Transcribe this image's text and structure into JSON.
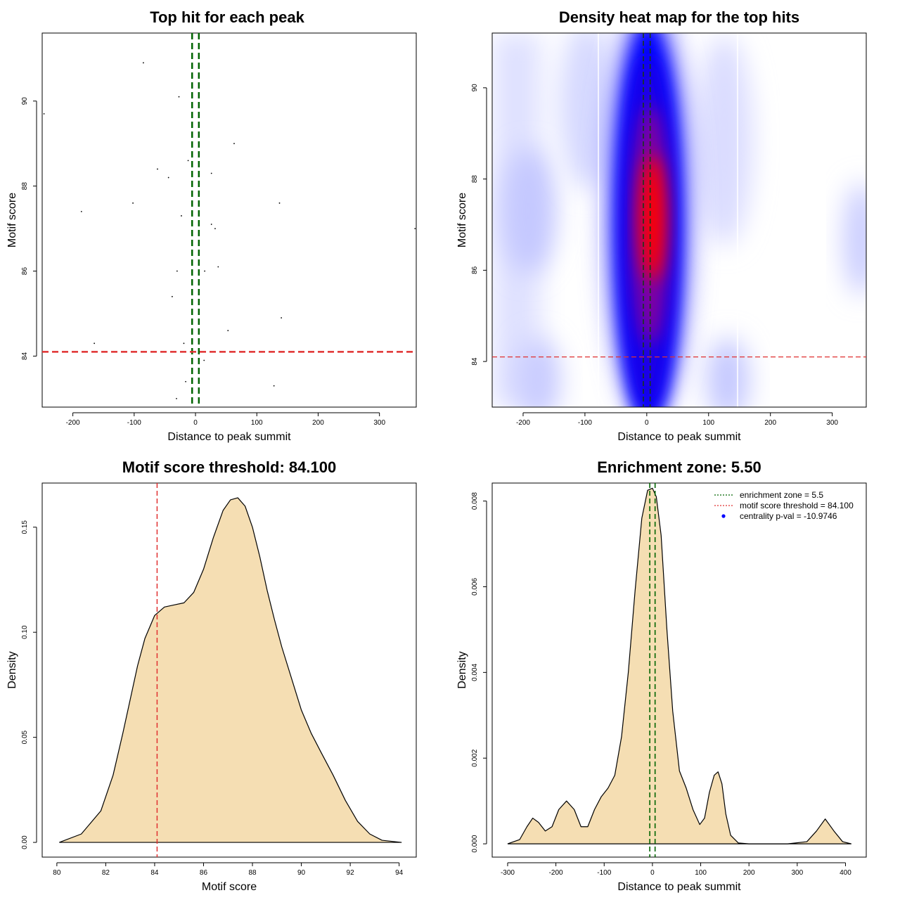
{
  "chart_data": [
    {
      "id": "scatter",
      "type": "scatter",
      "title": "Top hit for each peak",
      "xlabel": "Distance to peak summit",
      "ylabel": "Motif score",
      "xlim": [
        -250,
        360
      ],
      "ylim": [
        82.8,
        91.6
      ],
      "xticks": [
        -200,
        -100,
        0,
        100,
        200,
        300
      ],
      "yticks": [
        84,
        86,
        88,
        90
      ],
      "vlines": [
        -5.5,
        5.5
      ],
      "hline": 84.1,
      "points": [
        {
          "x": -247,
          "y": 89.7
        },
        {
          "x": -85,
          "y": 90.9
        },
        {
          "x": -27,
          "y": 90.1
        },
        {
          "x": 63,
          "y": 89.0
        },
        {
          "x": -62,
          "y": 88.4
        },
        {
          "x": -44,
          "y": 88.2
        },
        {
          "x": -12,
          "y": 88.6
        },
        {
          "x": 26,
          "y": 88.3
        },
        {
          "x": -102,
          "y": 87.6
        },
        {
          "x": 137,
          "y": 87.6
        },
        {
          "x": -186,
          "y": 87.4
        },
        {
          "x": -23,
          "y": 87.3
        },
        {
          "x": 26,
          "y": 87.1
        },
        {
          "x": 32,
          "y": 87.0
        },
        {
          "x": 358,
          "y": 87.0
        },
        {
          "x": 37,
          "y": 86.1
        },
        {
          "x": -30,
          "y": 86.0
        },
        {
          "x": 15,
          "y": 86.0
        },
        {
          "x": -38,
          "y": 85.4
        },
        {
          "x": 140,
          "y": 84.9
        },
        {
          "x": 53,
          "y": 84.6
        },
        {
          "x": -165,
          "y": 84.3
        },
        {
          "x": -19,
          "y": 84.3
        },
        {
          "x": 14,
          "y": 83.9
        },
        {
          "x": -16,
          "y": 83.4
        },
        {
          "x": 128,
          "y": 83.3
        },
        {
          "x": -31,
          "y": 83.0
        }
      ]
    },
    {
      "id": "heatmap",
      "type": "heatmap",
      "title": "Density heat map for the top hits",
      "xlabel": "Distance to peak summit",
      "ylabel": "Motif score",
      "xlim": [
        -250,
        355
      ],
      "ylim": [
        83,
        91.2
      ],
      "xticks": [
        -200,
        -100,
        0,
        100,
        200,
        300
      ],
      "yticks": [
        84,
        86,
        88,
        90
      ],
      "vlines": [
        -5.5,
        5.5
      ],
      "hline": 84.1,
      "colors": [
        "#ffffff",
        "#0000ff",
        "#ff0000"
      ]
    },
    {
      "id": "score-density",
      "type": "area",
      "title": "Motif score threshold: 84.100",
      "xlabel": "Motif score",
      "ylabel": "Density",
      "xlim": [
        79.4,
        94.7
      ],
      "ylim": [
        -0.007,
        0.171
      ],
      "xticks": [
        80,
        82,
        84,
        86,
        88,
        90,
        92,
        94
      ],
      "yticks": [
        0.0,
        0.05,
        0.1,
        0.15
      ],
      "ytick_labels": [
        "0.00",
        "0.05",
        "0.10",
        "0.15"
      ],
      "vline": 84.1,
      "fill": "#f5deb3",
      "x": [
        80.1,
        81.0,
        81.8,
        82.3,
        82.7,
        83.0,
        83.3,
        83.6,
        84.0,
        84.4,
        84.8,
        85.2,
        85.6,
        86.0,
        86.4,
        86.8,
        87.1,
        87.4,
        87.7,
        88.0,
        88.3,
        88.6,
        88.9,
        89.2,
        89.6,
        90.0,
        90.4,
        90.8,
        91.3,
        91.8,
        92.3,
        92.8,
        93.3,
        94.1
      ],
      "y": [
        0.0,
        0.004,
        0.015,
        0.032,
        0.052,
        0.068,
        0.084,
        0.097,
        0.108,
        0.112,
        0.113,
        0.114,
        0.119,
        0.13,
        0.145,
        0.158,
        0.163,
        0.164,
        0.16,
        0.15,
        0.136,
        0.12,
        0.106,
        0.093,
        0.078,
        0.063,
        0.052,
        0.043,
        0.032,
        0.02,
        0.01,
        0.004,
        0.001,
        0.0
      ]
    },
    {
      "id": "distance-density",
      "type": "area",
      "title": "Enrichment zone: 5.50",
      "xlabel": "Distance to peak summit",
      "ylabel": "Density",
      "xlim": [
        -332,
        443
      ],
      "ylim": [
        -0.00031,
        0.00842
      ],
      "xticks": [
        -300,
        -200,
        -100,
        0,
        100,
        200,
        300,
        400
      ],
      "yticks": [
        0.0,
        0.002,
        0.004,
        0.006,
        0.008
      ],
      "ytick_labels": [
        "0.000",
        "0.002",
        "0.004",
        "0.006",
        "0.008"
      ],
      "vlines": [
        -5.5,
        5.5
      ],
      "fill": "#f5deb3",
      "x": [
        -300,
        -275,
        -260,
        -248,
        -236,
        -222,
        -208,
        -194,
        -178,
        -162,
        -148,
        -134,
        -120,
        -106,
        -92,
        -78,
        -64,
        -50,
        -36,
        -22,
        -10,
        0,
        8,
        18,
        30,
        42,
        56,
        70,
        84,
        98,
        108,
        118,
        128,
        136,
        144,
        152,
        162,
        178,
        200,
        240,
        280,
        320,
        340,
        358,
        376,
        394,
        412
      ],
      "y": [
        0.0,
        0.0001,
        0.0004,
        0.0006,
        0.0005,
        0.0003,
        0.0004,
        0.0008,
        0.001,
        0.0008,
        0.0004,
        0.0004,
        0.0008,
        0.0011,
        0.0013,
        0.0016,
        0.0025,
        0.004,
        0.0059,
        0.0076,
        0.00825,
        0.0083,
        0.0081,
        0.0072,
        0.005,
        0.0031,
        0.0017,
        0.0013,
        0.0008,
        0.00045,
        0.0006,
        0.0012,
        0.0016,
        0.00168,
        0.0014,
        0.0007,
        0.0002,
        2e-05,
        0.0,
        0.0,
        0.0,
        5e-05,
        0.0003,
        0.00058,
        0.0003,
        5e-05,
        0.0
      ]
    }
  ],
  "legend": [
    {
      "label": "enrichment zone = 5.5",
      "color": "#006400",
      "style": "dotted-line"
    },
    {
      "label": "motif score threshold = 84.100",
      "color": "#e03030",
      "style": "dotted-line"
    },
    {
      "label": "centrality p-val = -10.9746",
      "color": "#0000ff",
      "style": "dot"
    }
  ],
  "colors": {
    "axis": "#000000",
    "green_line": "#006400",
    "red_line": "#e03030",
    "point": "#000000"
  }
}
